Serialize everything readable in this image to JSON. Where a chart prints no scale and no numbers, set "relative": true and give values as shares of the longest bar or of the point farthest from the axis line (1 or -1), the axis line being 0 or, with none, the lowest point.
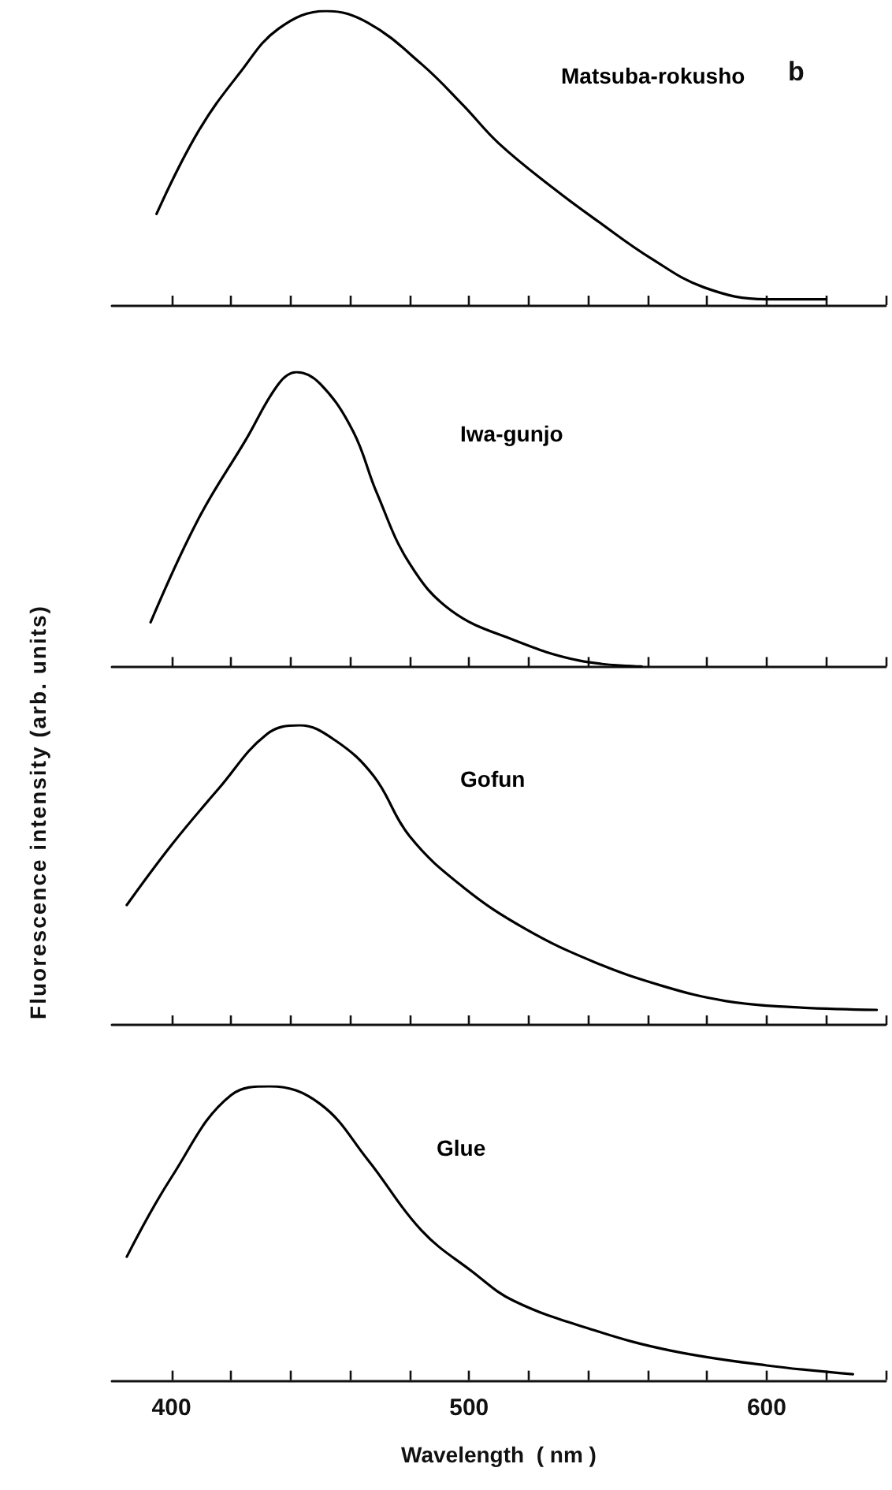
{
  "chart_data": [
    {
      "type": "line",
      "relative": true,
      "annotations": [
        "b"
      ],
      "tick_labels": false,
      "xlim": [
        380,
        640
      ],
      "xticks": [
        400,
        {
          "value": 420,
          "label": null
        },
        {
          "value": 440,
          "label": null
        },
        {
          "value": 460,
          "label": null
        },
        {
          "value": 480,
          "label": null
        },
        500,
        {
          "value": 520,
          "label": null
        },
        {
          "value": 540,
          "label": null
        },
        {
          "value": 560,
          "label": null
        },
        {
          "value": 580,
          "label": null
        },
        600,
        {
          "value": 620,
          "label": null
        },
        {
          "value": 640,
          "label": null
        }
      ],
      "series": [
        {
          "name": "Matsuba-rokusho",
          "color": "#000000",
          "x": [
            395,
            409,
            423,
            436,
            452,
            466,
            484,
            498,
            510,
            528,
            544,
            561,
            579,
            600,
            620
          ],
          "values": [
            0.31,
            0.59,
            0.79,
            0.94,
            1.0,
            0.96,
            0.82,
            0.68,
            0.55,
            0.4,
            0.28,
            0.16,
            0.06,
            0.02,
            0.02
          ]
        }
      ]
    },
    {
      "type": "line",
      "relative": true,
      "tick_labels": false,
      "xlim": [
        380,
        640
      ],
      "xticks": [
        400,
        {
          "value": 420,
          "label": null
        },
        {
          "value": 440,
          "label": null
        },
        {
          "value": 460,
          "label": null
        },
        {
          "value": 480,
          "label": null
        },
        500,
        {
          "value": 520,
          "label": null
        },
        {
          "value": 540,
          "label": null
        },
        {
          "value": 560,
          "label": null
        },
        {
          "value": 580,
          "label": null
        },
        600,
        {
          "value": 620,
          "label": null
        },
        {
          "value": 640,
          "label": null
        }
      ],
      "series": [
        {
          "name": "Iwa-gunjo",
          "color": "#000000",
          "x": [
            393,
            409,
            425,
            436,
            442,
            450,
            461,
            469,
            480,
            494,
            515,
            537,
            558
          ],
          "values": [
            0.15,
            0.5,
            0.77,
            0.96,
            1.0,
            0.96,
            0.8,
            0.59,
            0.35,
            0.19,
            0.09,
            0.02,
            0
          ]
        }
      ]
    },
    {
      "type": "line",
      "relative": true,
      "ylabel": "Fluorescence intensity (arb. units)",
      "tick_labels": false,
      "xlim": [
        380,
        640
      ],
      "xticks": [
        400,
        {
          "value": 420,
          "label": null
        },
        {
          "value": 440,
          "label": null
        },
        {
          "value": 460,
          "label": null
        },
        {
          "value": 480,
          "label": null
        },
        500,
        {
          "value": 520,
          "label": null
        },
        {
          "value": 540,
          "label": null
        },
        {
          "value": 560,
          "label": null
        },
        {
          "value": 580,
          "label": null
        },
        600,
        {
          "value": 620,
          "label": null
        },
        {
          "value": 640,
          "label": null
        }
      ],
      "series": [
        {
          "name": "Gofun",
          "color": "#000000",
          "x": [
            385,
            400,
            416,
            432,
            443,
            455,
            468,
            480,
            498,
            519,
            542,
            565,
            586,
            607,
            637
          ],
          "values": [
            0.4,
            0.6,
            0.79,
            0.97,
            1.0,
            0.95,
            0.83,
            0.63,
            0.46,
            0.32,
            0.21,
            0.13,
            0.08,
            0.06,
            0.05
          ]
        }
      ]
    },
    {
      "type": "line",
      "relative": true,
      "xlabel": "Wavelength  ( nm )",
      "xlim": [
        380,
        640
      ],
      "xticks": [
        400,
        {
          "value": 420,
          "label": null
        },
        {
          "value": 440,
          "label": null
        },
        {
          "value": 460,
          "label": null
        },
        {
          "value": 480,
          "label": null
        },
        500,
        {
          "value": 520,
          "label": null
        },
        {
          "value": 540,
          "label": null
        },
        {
          "value": 560,
          "label": null
        },
        {
          "value": 580,
          "label": null
        },
        600,
        {
          "value": 620,
          "label": null
        },
        {
          "value": 640,
          "label": null
        }
      ],
      "series": [
        {
          "name": "Glue",
          "color": "#000000",
          "x": [
            385,
            400,
            420,
            433,
            450,
            466,
            484,
            501,
            515,
            542,
            568,
            600,
            629
          ],
          "values": [
            0.42,
            0.69,
            0.97,
            1.0,
            0.94,
            0.75,
            0.51,
            0.37,
            0.27,
            0.17,
            0.1,
            0.05,
            0.02
          ]
        }
      ]
    }
  ]
}
